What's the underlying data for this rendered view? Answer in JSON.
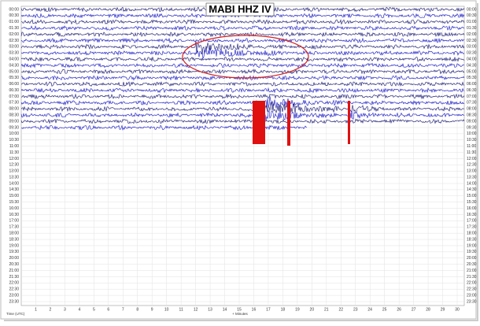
{
  "title": "MABI HHZ IV",
  "row_labels": [
    "00:00",
    "00:30",
    "01:00",
    "01:30",
    "02:00",
    "02:30",
    "03:00",
    "03:30",
    "04:00",
    "04:30",
    "05:00",
    "05:30",
    "06:00",
    "06:30",
    "07:00",
    "07:30",
    "08:00",
    "08:30",
    "09:00",
    "09:30",
    "10:00",
    "10:30",
    "11:00",
    "11:30",
    "12:00",
    "12:30",
    "13:00",
    "13:30",
    "14:00",
    "14:30",
    "15:00",
    "15:30",
    "16:00",
    "16:30",
    "17:00",
    "17:30",
    "18:00",
    "18:30",
    "19:00",
    "19:30",
    "20:00",
    "20:30",
    "21:00",
    "21:30",
    "22:00",
    "22:30",
    "23:00",
    "23:30"
  ],
  "minute_labels": [
    "1",
    "2",
    "3",
    "4",
    "5",
    "6",
    "7",
    "8",
    "9",
    "10",
    "11",
    "12",
    "13",
    "14",
    "15",
    "16",
    "17",
    "18",
    "19",
    "20",
    "21",
    "22",
    "23",
    "24",
    "25",
    "26",
    "27",
    "28",
    "29",
    "30"
  ],
  "x_label": "+ Minutes",
  "time_label": "Time (UTC)"
}
